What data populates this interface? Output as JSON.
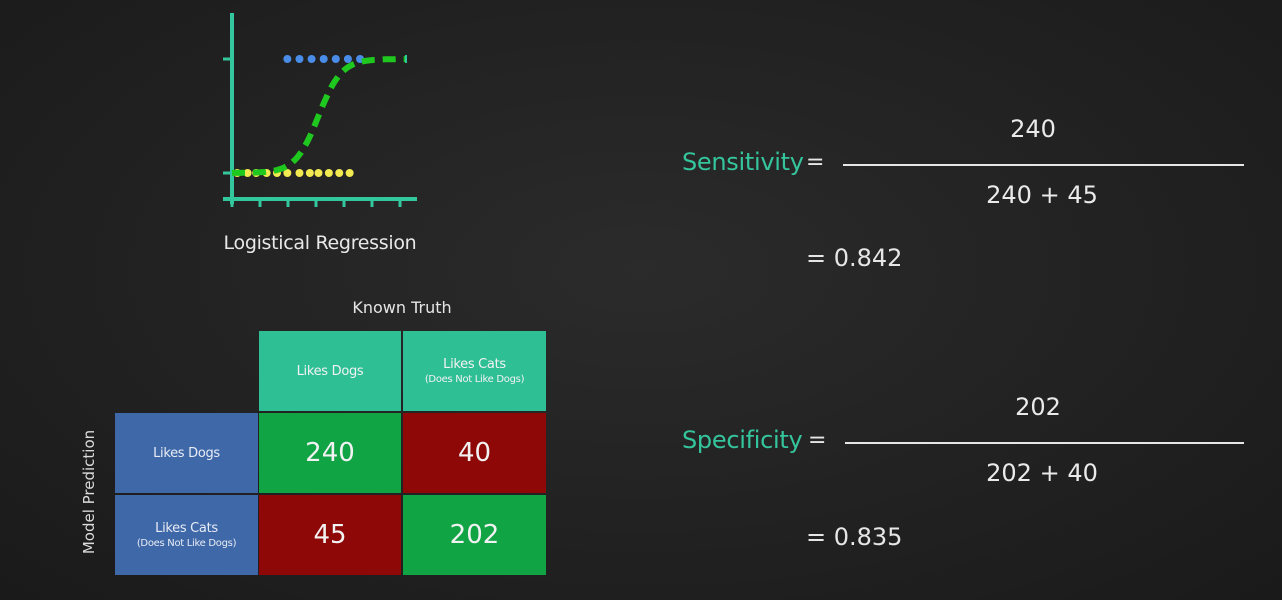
{
  "chart": {
    "caption": "Logistical Regression",
    "colors": {
      "axis": "#33c79e",
      "curve": "#1fc81f",
      "top_points": "#4a8de8",
      "bottom_points": "#f2ea50"
    },
    "top_points_x": [
      0.32,
      0.39,
      0.46,
      0.53,
      0.6,
      0.67,
      0.74
    ],
    "bottom_points_x": [
      0.03,
      0.09,
      0.14,
      0.2,
      0.26,
      0.32,
      0.39,
      0.45,
      0.5,
      0.56,
      0.62,
      0.68
    ],
    "curve": {
      "midpoint": 0.5,
      "steepness": 15
    }
  },
  "matrix": {
    "title": "Known Truth",
    "row_axis_label": "Model Prediction",
    "col_headers": [
      {
        "label": "Likes Dogs",
        "sub": ""
      },
      {
        "label": "Likes Cats",
        "sub": "(Does Not Like Dogs)"
      }
    ],
    "row_headers": [
      {
        "label": "Likes Dogs",
        "sub": ""
      },
      {
        "label": "Likes Cats",
        "sub": "(Does Not Like Dogs)"
      }
    ],
    "cells": [
      [
        "240",
        "40"
      ],
      [
        "45",
        "202"
      ]
    ],
    "colors": {
      "green": "#10a445",
      "red": "#8f0808",
      "header": "#2fbf95",
      "row_header": "#3f68a8"
    }
  },
  "sensitivity": {
    "label": "Sensitivity",
    "eq": "=",
    "numerator": "240",
    "denominator": "240 + 45",
    "result": "= 0.842"
  },
  "specificity": {
    "label": "Specificity",
    "eq": "=",
    "numerator": "202",
    "denominator": "202 + 40",
    "result": "= 0.835"
  }
}
